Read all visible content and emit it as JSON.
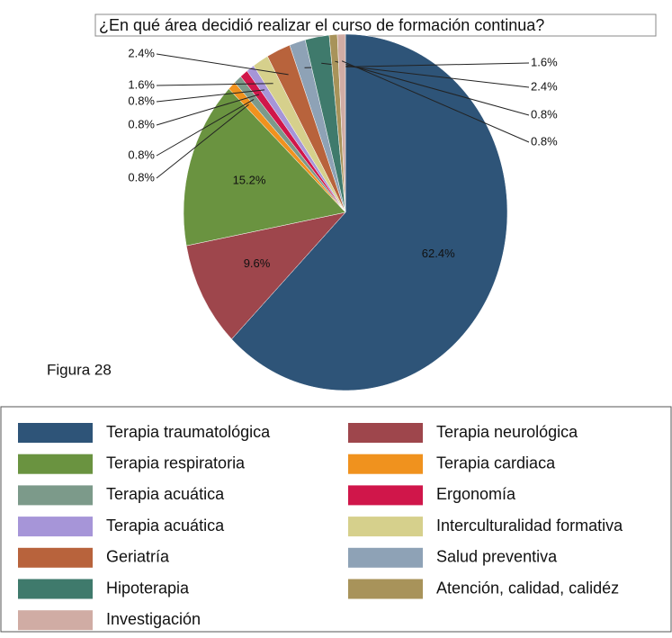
{
  "chart_data": {
    "type": "pie",
    "title": "¿En qué área decidió realizar el curso de formación continua?",
    "annotation": "Figura 28",
    "categories": [
      "Terapia traumatológica",
      "Terapia neurológica",
      "Terapia respiratoria",
      "Terapia cardiaca",
      "Terapia acuática",
      "Ergonomía",
      "Terapia acuática",
      "Interculturalidad formativa",
      "Geriatría",
      "Salud preventiva",
      "Hipoterapia",
      "Atención, calidad, calidéz",
      "Investigación"
    ],
    "values": [
      62.4,
      9.6,
      15.2,
      0.8,
      0.8,
      0.8,
      0.8,
      1.6,
      2.4,
      1.6,
      2.4,
      0.8,
      0.8
    ],
    "value_labels": [
      "62.4%",
      "9.6%",
      "15.2%",
      "0.8%",
      "0.8%",
      "0.8%",
      "0.8%",
      "1.6%",
      "2.4%",
      "1.6%",
      "2.4%",
      "0.8%",
      "0.8%"
    ],
    "colors": [
      "#2e5478",
      "#9e464c",
      "#6a9340",
      "#f0921e",
      "#7c9a8a",
      "#d0164a",
      "#a695d8",
      "#d6d08c",
      "#b8633c",
      "#8ea2b6",
      "#3f7a6c",
      "#a8935a",
      "#d0aca4"
    ],
    "legend": "bottom"
  }
}
